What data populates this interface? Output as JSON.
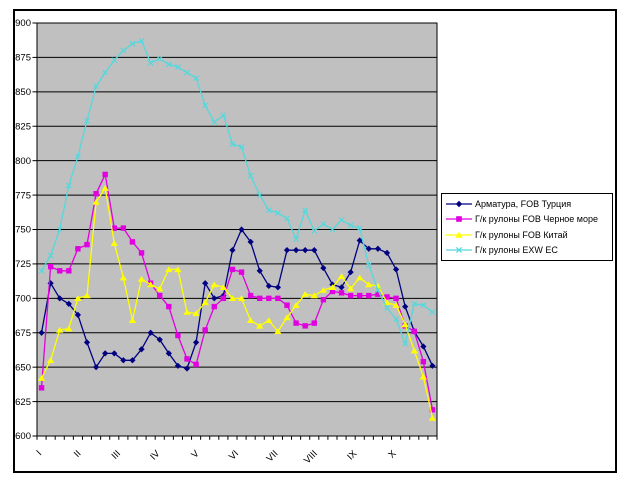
{
  "colors": {
    "frame_border": "#000000",
    "plot_background": "#c0c0c0",
    "gridline": "#000000",
    "chart_background": "#ffffff"
  },
  "chart_data": {
    "type": "line",
    "title": "",
    "n_points": 44,
    "grid": "on",
    "legend_position": "right",
    "y_axis": {
      "min": 600,
      "max": 900,
      "step": 25,
      "tick_labels": [
        "600",
        "625",
        "650",
        "675",
        "700",
        "725",
        "750",
        "775",
        "800",
        "825",
        "850",
        "875",
        "900"
      ]
    },
    "x_axis": {
      "labels": [
        "I",
        "II",
        "III",
        "IV",
        "V",
        "VI",
        "VII",
        "VIII",
        "IX",
        "X"
      ],
      "label_week_index": [
        0,
        4.33,
        8.67,
        13,
        17.33,
        21.67,
        26,
        30.33,
        34.67,
        39
      ]
    },
    "series": [
      {
        "name": "Арматура, FOB Турция",
        "color": "#000080",
        "marker": "diamond",
        "values": [
          675,
          711,
          700,
          696,
          688,
          668,
          650,
          660,
          660,
          655,
          655,
          663,
          675,
          670,
          660,
          651,
          649,
          668,
          711,
          700,
          702,
          735,
          750,
          741,
          720,
          709,
          708,
          735,
          735,
          735,
          735,
          722,
          710,
          708,
          719,
          742,
          736,
          736,
          733,
          721,
          694,
          676,
          665,
          651
        ]
      },
      {
        "name": "Г/к рулоны FOB Черное море",
        "color": "#e000e0",
        "marker": "square",
        "values": [
          635,
          723,
          720,
          720,
          736,
          739,
          776,
          790,
          751,
          751,
          741,
          733,
          711,
          702,
          694,
          673,
          656,
          652,
          677,
          694,
          700,
          721,
          719,
          702,
          700,
          700,
          700,
          695,
          682,
          680,
          682,
          699,
          705,
          704,
          702,
          702,
          702,
          703,
          701,
          700,
          680,
          676,
          654,
          619
        ]
      },
      {
        "name": "Г/к рулоны FOB Китай",
        "color": "#ffff00",
        "marker": "triangle",
        "values": [
          642,
          655,
          677,
          678,
          700,
          702,
          770,
          780,
          740,
          715,
          684,
          714,
          710,
          707,
          721,
          721,
          690,
          689,
          697,
          710,
          708,
          700,
          700,
          684,
          680,
          684,
          676,
          686,
          695,
          703,
          702,
          706,
          708,
          716,
          707,
          715,
          710,
          709,
          697,
          695,
          681,
          662,
          643,
          613
        ]
      },
      {
        "name": "Г/к рулоны EXW ЕС",
        "color": "#55d8dd",
        "marker": "x",
        "values": [
          720,
          731,
          750,
          782,
          803,
          829,
          854,
          864,
          873,
          880,
          885,
          887,
          871,
          874,
          870,
          868,
          864,
          860,
          840,
          828,
          833,
          812,
          810,
          789,
          775,
          764,
          762,
          758,
          743,
          764,
          749,
          754,
          750,
          757,
          753,
          751,
          724,
          706,
          693,
          685,
          667,
          696,
          695,
          690
        ]
      }
    ]
  }
}
